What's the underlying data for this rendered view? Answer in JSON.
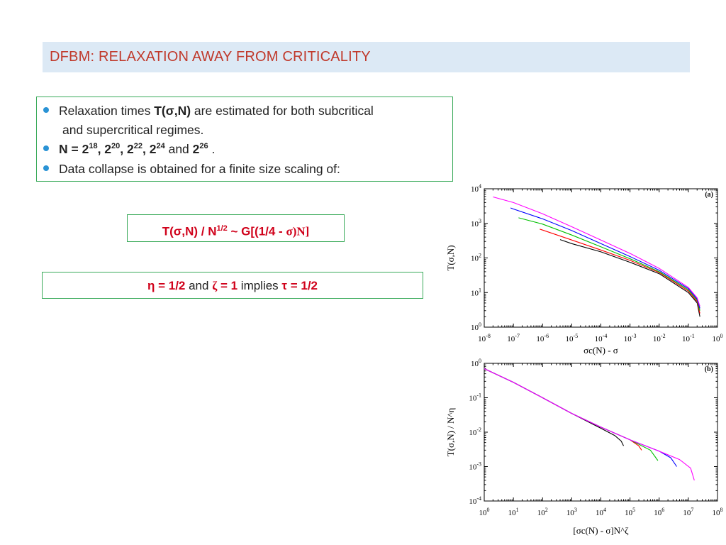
{
  "title": "DFBM:  RELAXATION  AWAY  FROM  CRITICALITY",
  "bullets": {
    "b1_pre": "Relaxation times ",
    "b1_bold": "T(σ,N)",
    "b1_post": " are estimated for both subcritical",
    "b1_line2": "and supercritical regimes.",
    "b2_n": "N = 2",
    "b2_e1": "18",
    "b2_t2": ", 2",
    "b2_e2": "20",
    "b2_t3": ", 2",
    "b2_e3": "22",
    "b2_t4": ", 2",
    "b2_e4": "24",
    "b2_and": " and ",
    "b2_t5": "2",
    "b2_e5": "26",
    "b2_end": " .",
    "b3": "Data collapse is obtained for a finite size scaling of:"
  },
  "formula": {
    "left": "T(σ,N) / N",
    "exp": "1/2",
    "mid": "  ~  G[(1/4 - ",
    "sigma": "σ)N]"
  },
  "implies": {
    "eta": "η = 1/2",
    "and": " and ",
    "zeta_sym": "ζ",
    "zeta_val": " = 1",
    "implies": " implies ",
    "tau": "τ = 1/2"
  },
  "chart_data": [
    {
      "type": "line",
      "panel_label": "(a)",
      "xlabel": "σc(N) - σ",
      "ylabel": "T(σ,N)",
      "xscale": "log",
      "yscale": "log",
      "xlim": [
        1e-08,
        1
      ],
      "ylim": [
        1,
        10000
      ],
      "x_ticks": [
        "10-8",
        "10-7",
        "10-6",
        "10-5",
        "10-4",
        "10-3",
        "10-2",
        "10-1",
        "100"
      ],
      "y_ticks": [
        "100",
        "101",
        "102",
        "103",
        "104"
      ],
      "series": [
        {
          "name": "N=2^18",
          "color": "#000000",
          "x": [
            4e-06,
            1e-05,
            0.0001,
            0.001,
            0.01,
            0.1,
            0.2,
            0.25
          ],
          "y": [
            340,
            260,
            150,
            75,
            35,
            10,
            5,
            2
          ]
        },
        {
          "name": "N=2^20",
          "color": "#ff0000",
          "x": [
            8e-07,
            1e-06,
            1e-05,
            0.0001,
            0.001,
            0.01,
            0.1,
            0.2,
            0.25
          ],
          "y": [
            680,
            640,
            330,
            170,
            85,
            38,
            11,
            5.5,
            2.5
          ]
        },
        {
          "name": "N=2^22",
          "color": "#00c000",
          "x": [
            1.5e-07,
            1e-06,
            1e-05,
            0.0001,
            0.001,
            0.01,
            0.1,
            0.2,
            0.25
          ],
          "y": [
            1450,
            950,
            460,
            210,
            95,
            40,
            12,
            6,
            3
          ]
        },
        {
          "name": "N=2^24",
          "color": "#0000ff",
          "x": [
            8e-08,
            1e-07,
            1e-06,
            1e-05,
            0.0001,
            0.001,
            0.01,
            0.1,
            0.2,
            0.25
          ],
          "y": [
            2800,
            2600,
            1350,
            620,
            260,
            110,
            44,
            13,
            6.5,
            3.5
          ]
        },
        {
          "name": "N=2^26",
          "color": "#ff00ff",
          "x": [
            2e-08,
            1e-07,
            1e-06,
            1e-05,
            0.0001,
            0.001,
            0.01,
            0.1,
            0.2,
            0.25
          ],
          "y": [
            5800,
            4000,
            1900,
            800,
            330,
            135,
            50,
            14,
            7,
            4
          ]
        }
      ]
    },
    {
      "type": "line",
      "panel_label": "(b)",
      "xlabel": "[σc(N) - σ]N^ζ",
      "ylabel": "T(σ,N) / N^η",
      "xscale": "log",
      "yscale": "log",
      "xlim": [
        1,
        100000000
      ],
      "ylim": [
        0.0001,
        1
      ],
      "x_ticks": [
        "100",
        "101",
        "102",
        "103",
        "104",
        "105",
        "106",
        "107",
        "108"
      ],
      "y_ticks": [
        "10-4",
        "10-3",
        "10-2",
        "10-1",
        "100"
      ],
      "series": [
        {
          "name": "N=2^18",
          "color": "#000000",
          "x": [
            1,
            10,
            100,
            1000,
            10000,
            30000,
            50000,
            60000
          ],
          "y": [
            0.7,
            0.28,
            0.1,
            0.035,
            0.013,
            0.008,
            0.0055,
            0.004
          ]
        },
        {
          "name": "N=2^20",
          "color": "#ff0000",
          "x": [
            1,
            10,
            100,
            1000,
            10000,
            100000,
            200000,
            250000
          ],
          "y": [
            0.7,
            0.28,
            0.1,
            0.035,
            0.014,
            0.006,
            0.004,
            0.003
          ]
        },
        {
          "name": "N=2^22",
          "color": "#00c000",
          "x": [
            1,
            10,
            100,
            1000,
            10000,
            100000,
            500000,
            900000
          ],
          "y": [
            0.7,
            0.28,
            0.1,
            0.035,
            0.014,
            0.006,
            0.003,
            0.0015
          ]
        },
        {
          "name": "N=2^24",
          "color": "#0000ff",
          "x": [
            1,
            10,
            100,
            1000,
            10000,
            100000,
            1000000,
            2500000,
            4000000
          ],
          "y": [
            0.7,
            0.28,
            0.1,
            0.035,
            0.014,
            0.006,
            0.0028,
            0.0018,
            0.001
          ]
        },
        {
          "name": "N=2^26",
          "color": "#ff00ff",
          "x": [
            1,
            10,
            100,
            1000,
            10000,
            100000,
            1000000,
            5000000,
            12000000,
            16000000
          ],
          "y": [
            0.7,
            0.28,
            0.1,
            0.035,
            0.014,
            0.006,
            0.0028,
            0.0016,
            0.0009,
            0.0004
          ]
        }
      ]
    }
  ]
}
